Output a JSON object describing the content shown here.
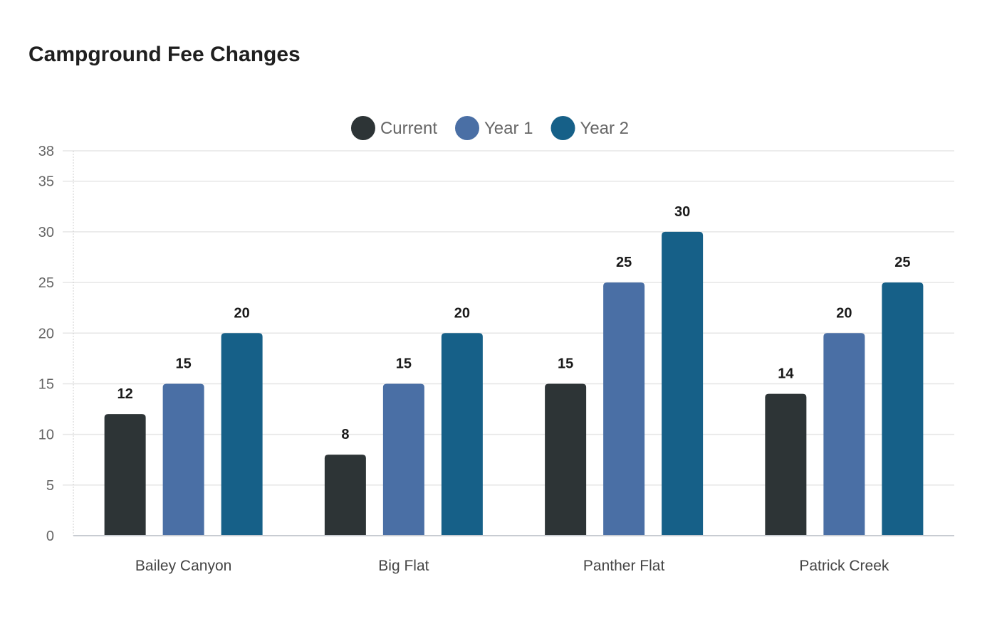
{
  "chart_data": {
    "type": "bar",
    "title": "Campground Fee Changes",
    "xlabel": "",
    "ylabel": "",
    "ylim": [
      0,
      38
    ],
    "yticks": [
      0,
      5,
      10,
      15,
      20,
      25,
      30,
      35,
      38
    ],
    "grid": true,
    "legend_position": "top-center",
    "categories": [
      "Bailey Canyon",
      "Big Flat",
      "Panther Flat",
      "Patrick Creek"
    ],
    "series": [
      {
        "name": "Current",
        "color": "#2d3436",
        "values": [
          12,
          8,
          15,
          14
        ]
      },
      {
        "name": "Year 1",
        "color": "#4a6fa5",
        "values": [
          15,
          15,
          25,
          20
        ]
      },
      {
        "name": "Year 2",
        "color": "#166088",
        "values": [
          20,
          20,
          30,
          25
        ]
      }
    ]
  }
}
